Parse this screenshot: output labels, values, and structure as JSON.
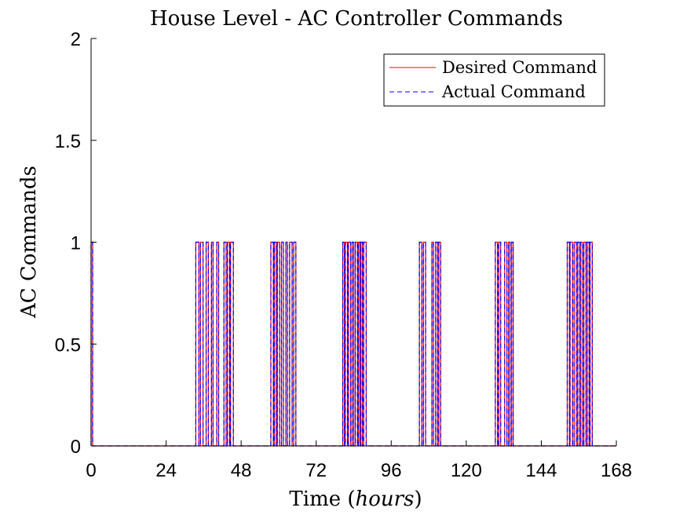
{
  "chart_data": {
    "type": "line",
    "title": "House Level - AC Controller Commands",
    "xlabel": "Time (hours)",
    "xlabel_parts": {
      "prefix": "Time (",
      "italic": "hours",
      "suffix": ")"
    },
    "ylabel": "AC Commands",
    "xlim": [
      0,
      168
    ],
    "ylim": [
      0,
      2
    ],
    "xticks": [
      0,
      24,
      48,
      72,
      96,
      120,
      144,
      168
    ],
    "yticks": [
      0,
      0.5,
      1,
      1.5,
      2
    ],
    "ytick_labels": [
      "0",
      "0.5",
      "1",
      "1.5",
      "2"
    ],
    "grid": false,
    "legend_position": "top-right",
    "on_intervals": [
      [
        0,
        0.5
      ],
      [
        33.5,
        34.5
      ],
      [
        35,
        35.8
      ],
      [
        36.8,
        37.5
      ],
      [
        38.5,
        39
      ],
      [
        40.2,
        40.8
      ],
      [
        42.5,
        43.2
      ],
      [
        43.6,
        44.3
      ],
      [
        44.6,
        45.5
      ],
      [
        57.5,
        58.3
      ],
      [
        58.6,
        59.2
      ],
      [
        59.6,
        60.3
      ],
      [
        60.9,
        61.5
      ],
      [
        62.3,
        62.8
      ],
      [
        63.5,
        64.3
      ],
      [
        64.8,
        65.5
      ],
      [
        80.5,
        81
      ],
      [
        81.3,
        82
      ],
      [
        82.3,
        83
      ],
      [
        83.5,
        84
      ],
      [
        84.5,
        85.2
      ],
      [
        85.5,
        86
      ],
      [
        86.3,
        86.8
      ],
      [
        87.2,
        88
      ],
      [
        105,
        105.8
      ],
      [
        106.3,
        107
      ],
      [
        109,
        109.5
      ],
      [
        110.2,
        110.8
      ],
      [
        111.2,
        111.8
      ],
      [
        129.3,
        130
      ],
      [
        130.4,
        131
      ],
      [
        132.3,
        133
      ],
      [
        133.5,
        134
      ],
      [
        134.5,
        135
      ],
      [
        152.3,
        153
      ],
      [
        153.2,
        154
      ],
      [
        154.5,
        155.2
      ],
      [
        155.6,
        156.2
      ],
      [
        156.6,
        157.2
      ],
      [
        157.6,
        158.3
      ],
      [
        158.7,
        159.3
      ],
      [
        159.6,
        160.3
      ]
    ],
    "series": [
      {
        "name": "Desired Command",
        "color": "#ff0000",
        "style": "solid"
      },
      {
        "name": "Actual Command",
        "color": "#0000ff",
        "style": "dashed"
      }
    ]
  }
}
